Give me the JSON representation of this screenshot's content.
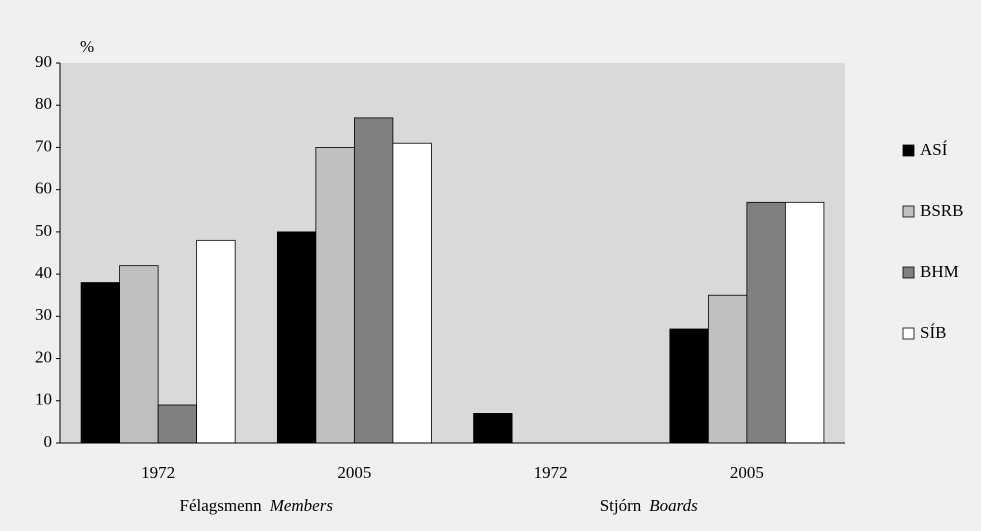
{
  "chart_data": {
    "type": "bar",
    "y_label": "%",
    "categories": [
      "1972",
      "2005",
      "1972",
      "2005"
    ],
    "groups": [
      [
        "Félagsmenn",
        "Members"
      ],
      [
        "Stjórn",
        "Boards"
      ]
    ],
    "series": [
      {
        "name": "ASÍ",
        "color": "#000000",
        "values": [
          38,
          50,
          7,
          27
        ]
      },
      {
        "name": "BSRB",
        "color": "#c0c0c0",
        "values": [
          42,
          70,
          0,
          35
        ]
      },
      {
        "name": "BHM",
        "color": "#808080",
        "values": [
          9,
          77,
          0,
          57
        ]
      },
      {
        "name": "SÍB",
        "color": "#ffffff",
        "values": [
          48,
          71,
          0,
          57
        ]
      }
    ],
    "ylim": [
      0,
      90
    ],
    "yticks": [
      0,
      10,
      20,
      30,
      40,
      50,
      60,
      70,
      80,
      90
    ],
    "grid": false,
    "legend": "right"
  }
}
